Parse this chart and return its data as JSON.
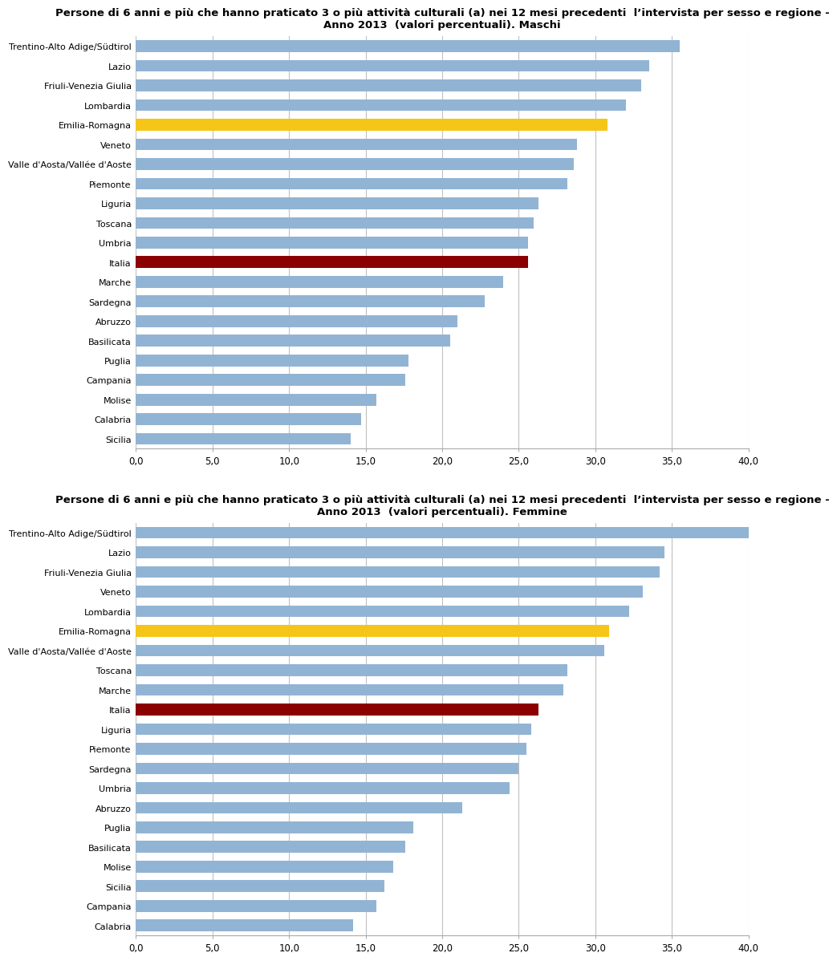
{
  "title_maschi": "Persone di 6 anni e più che hanno praticato 3 o più attività culturali (a) nei 12 mesi precedenti  l’intervista per sesso e regione -\nAnno 2013  (valori percentuali). Maschi",
  "title_femmine": "Persone di 6 anni e più che hanno praticato 3 o più attività culturali (a) nei 12 mesi precedenti  l’intervista per sesso e regione -\nAnno 2013  (valori percentuali). Femmine",
  "maschi": {
    "categories": [
      "Trentino-Alto Adige/Südtirol",
      "Lazio",
      "Friuli-Venezia Giulia",
      "Lombardia",
      "Emilia-Romagna",
      "Veneto",
      "Valle d'Aosta/Vallée d'Aoste",
      "Piemonte",
      "Liguria",
      "Toscana",
      "Umbria",
      "Italia",
      "Marche",
      "Sardegna",
      "Abruzzo",
      "Basilicata",
      "Puglia",
      "Campania",
      "Molise",
      "Calabria",
      "Sicilia"
    ],
    "values": [
      35.5,
      33.5,
      33.0,
      32.0,
      30.8,
      28.8,
      28.6,
      28.2,
      26.3,
      26.0,
      25.6,
      25.6,
      24.0,
      22.8,
      21.0,
      20.5,
      17.8,
      17.6,
      15.7,
      14.7,
      14.0
    ],
    "colors": [
      "#92b4d4",
      "#92b4d4",
      "#92b4d4",
      "#92b4d4",
      "#f5c518",
      "#92b4d4",
      "#92b4d4",
      "#92b4d4",
      "#92b4d4",
      "#92b4d4",
      "#92b4d4",
      "#8b0000",
      "#92b4d4",
      "#92b4d4",
      "#92b4d4",
      "#92b4d4",
      "#92b4d4",
      "#92b4d4",
      "#92b4d4",
      "#92b4d4",
      "#92b4d4"
    ]
  },
  "femmine": {
    "categories": [
      "Trentino-Alto Adige/Südtirol",
      "Lazio",
      "Friuli-Venezia Giulia",
      "Veneto",
      "Lombardia",
      "Emilia-Romagna",
      "Valle d'Aosta/Vallée d'Aoste",
      "Toscana",
      "Marche",
      "Italia",
      "Liguria",
      "Piemonte",
      "Sardegna",
      "Umbria",
      "Abruzzo",
      "Puglia",
      "Basilicata",
      "Molise",
      "Sicilia",
      "Campania",
      "Calabria"
    ],
    "values": [
      40.7,
      34.5,
      34.2,
      33.1,
      32.2,
      30.9,
      30.6,
      28.2,
      27.9,
      26.3,
      25.8,
      25.5,
      25.0,
      24.4,
      21.3,
      18.1,
      17.6,
      16.8,
      16.2,
      15.7,
      14.2
    ],
    "colors": [
      "#92b4d4",
      "#92b4d4",
      "#92b4d4",
      "#92b4d4",
      "#92b4d4",
      "#f5c518",
      "#92b4d4",
      "#92b4d4",
      "#92b4d4",
      "#8b0000",
      "#92b4d4",
      "#92b4d4",
      "#92b4d4",
      "#92b4d4",
      "#92b4d4",
      "#92b4d4",
      "#92b4d4",
      "#92b4d4",
      "#92b4d4",
      "#92b4d4",
      "#92b4d4"
    ]
  },
  "xlim": [
    0,
    40
  ],
  "xticks": [
    0,
    5,
    10,
    15,
    20,
    25,
    30,
    35,
    40
  ],
  "xticklabels": [
    "0,0",
    "5,0",
    "10,0",
    "15,0",
    "20,0",
    "25,0",
    "30,0",
    "35,0",
    "40,0"
  ],
  "background_color": "#ffffff",
  "bar_height": 0.6,
  "title_fontsize": 9.5,
  "label_fontsize": 8.0,
  "tick_fontsize": 8.5,
  "grid_color": "#c0c0c0",
  "bar_color_default": "#92b4d4",
  "bar_color_emilia": "#f5c518",
  "bar_color_italia": "#8b0000"
}
